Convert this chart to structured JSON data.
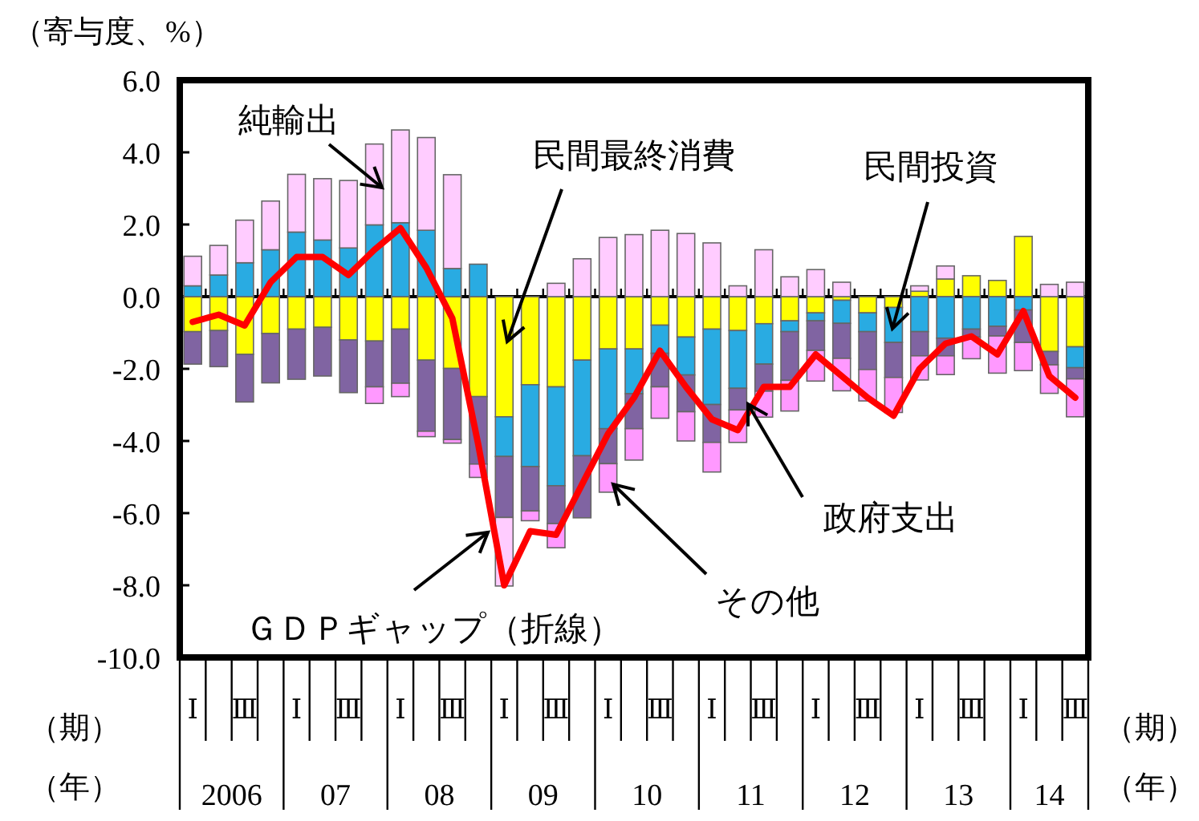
{
  "chart_data": {
    "type": "bar",
    "stacked": true,
    "ylabel": "（寄与度、%）",
    "categories": [
      "Ⅰ",
      null,
      "Ⅲ",
      null,
      "Ⅰ",
      null,
      "Ⅲ",
      null,
      "Ⅰ",
      null,
      "Ⅲ",
      null,
      "Ⅰ",
      null,
      "Ⅲ",
      null,
      "Ⅰ",
      null,
      "Ⅲ",
      null,
      "Ⅰ",
      null,
      "Ⅲ",
      null,
      "Ⅰ",
      null,
      "Ⅲ",
      null,
      "Ⅰ",
      null,
      "Ⅲ",
      null,
      "Ⅰ",
      null,
      "Ⅲ"
    ],
    "series": [
      {
        "name": "民間最終消費",
        "color": "#ffff00",
        "values": [
          -0.97,
          -0.94,
          -1.6,
          -1.02,
          -0.9,
          -0.85,
          -1.2,
          -1.23,
          -0.9,
          -1.76,
          -1.99,
          -2.77,
          -3.33,
          -2.44,
          -2.5,
          -1.76,
          -1.45,
          -1.45,
          -0.79,
          -1.12,
          -0.9,
          -0.94,
          -0.75,
          -0.67,
          -0.45,
          -0.1,
          -0.45,
          -0.3,
          0.15,
          0.49,
          0.58,
          0.45,
          1.67,
          -1.52,
          -1.39
        ]
      },
      {
        "name": "民間投資",
        "color": "#29abe2",
        "values": [
          0.3,
          0.6,
          0.94,
          1.3,
          1.79,
          1.57,
          1.35,
          1.99,
          2.05,
          1.84,
          0.78,
          0.9,
          -1.1,
          -2.27,
          -2.74,
          -2.65,
          -2.21,
          -1.24,
          -0.78,
          -1.05,
          -2.09,
          -1.6,
          -1.12,
          -0.3,
          -0.22,
          -0.64,
          -0.52,
          -0.97,
          -0.97,
          -1.15,
          -0.9,
          -0.82,
          -0.37,
          0,
          -0.58
        ]
      },
      {
        "name": "政府支出",
        "color": "#8064a2",
        "values": [
          -0.9,
          -1.0,
          -1.32,
          -1.37,
          -1.39,
          -1.35,
          -1.46,
          -1.27,
          -1.5,
          -1.97,
          -1.97,
          -1.87,
          -1.69,
          -1.23,
          -1.05,
          -1.72,
          -0.97,
          -0.97,
          -0.93,
          -1.02,
          -1.05,
          -0.6,
          -0.75,
          -1.35,
          -0.82,
          -0.97,
          -1.05,
          -0.97,
          -0.67,
          -0.49,
          -0.22,
          -0.27,
          -0.9,
          -0.37,
          -0.31
        ]
      },
      {
        "name": "その他",
        "color": "#ff99ff",
        "values": [
          0,
          0,
          0,
          0,
          0,
          0,
          0,
          -0.46,
          -0.37,
          -0.15,
          -0.1,
          -0.37,
          0,
          -0.27,
          -0.67,
          0,
          -0.79,
          -0.87,
          -0.87,
          -0.81,
          -0.82,
          -0.9,
          -0.72,
          -0.85,
          -0.85,
          -0.9,
          -0.87,
          -0.97,
          -0.67,
          -0.52,
          -0.6,
          -1.03,
          -0.78,
          -0.79,
          -1.05
        ]
      },
      {
        "name": "純輸出",
        "color": "#ffccff",
        "values": [
          0.82,
          0.82,
          1.18,
          1.35,
          1.6,
          1.7,
          1.87,
          2.24,
          2.57,
          2.57,
          2.6,
          0,
          -1.9,
          0,
          0.37,
          1.05,
          1.64,
          1.72,
          1.84,
          1.75,
          1.49,
          0.3,
          1.3,
          0.55,
          0.75,
          0.4,
          0,
          0,
          0.15,
          0.36,
          0,
          0,
          0,
          0.34,
          0.4
        ]
      },
      {
        "name": "ＧＤＰギャップ（折線）",
        "type": "line",
        "color": "#ff0000",
        "values": [
          -0.7,
          -0.5,
          -0.8,
          0.4,
          1.1,
          1.1,
          0.6,
          1.3,
          1.9,
          0.8,
          -0.6,
          -4.1,
          -8.0,
          -6.5,
          -6.6,
          -5.2,
          -3.8,
          -2.8,
          -1.5,
          -2.5,
          -3.4,
          -3.7,
          -2.5,
          -2.5,
          -1.6,
          -2.2,
          -2.8,
          -3.3,
          -2.0,
          -1.3,
          -1.1,
          -1.6,
          -0.4,
          -2.2,
          -2.8
        ]
      }
    ],
    "ylim": [
      -10,
      6
    ],
    "yticks": [
      {
        "value": 6,
        "label": "6.0"
      },
      {
        "value": 4,
        "label": "4.0"
      },
      {
        "value": 2,
        "label": "2.0"
      },
      {
        "value": 0,
        "label": "0.0"
      },
      {
        "value": -2,
        "label": "-2.0"
      },
      {
        "value": -4,
        "label": "-4.0"
      },
      {
        "value": -6,
        "label": "-6.0"
      },
      {
        "value": -8,
        "label": "-8.0"
      },
      {
        "value": -10,
        "label": "-10.0"
      }
    ],
    "annotations": [
      "2006",
      "07",
      "08",
      "09",
      "10",
      "11",
      "12",
      "13",
      "14",
      "（期）",
      "（年）",
      "（期）",
      "（年）"
    ]
  }
}
